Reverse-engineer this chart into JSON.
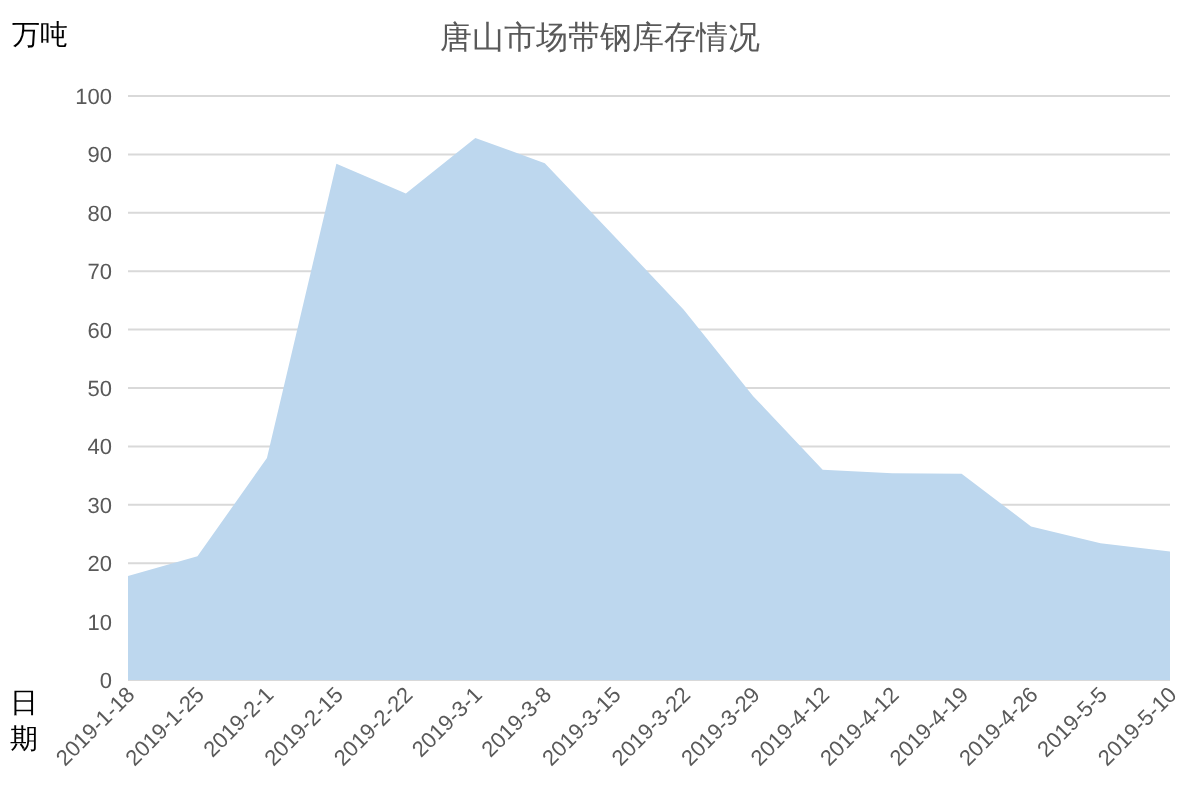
{
  "chart_data": {
    "type": "area",
    "title": "唐山市场带钢库存情况",
    "ylabel": "万吨",
    "xlabel": "日期",
    "categories": [
      "2019-1-18",
      "2019-1-25",
      "2019-2-1",
      "2019-2-15",
      "2019-2-22",
      "2019-3-1",
      "2019-3-8",
      "2019-3-15",
      "2019-3-22",
      "2019-3-29",
      "2019-4-12",
      "2019-4-12",
      "2019-4-19",
      "2019-4-26",
      "2019-5-5",
      "2019-5-10"
    ],
    "series": [
      {
        "color": "#bdd7ee",
        "values": [
          17.8,
          21.2,
          38,
          88.4,
          83.3,
          92.8,
          88.5,
          76,
          63.4,
          48.6,
          36,
          35.4,
          35.3,
          26.3,
          23.4,
          22
        ]
      }
    ],
    "ylim": [
      0,
      100
    ],
    "yticks": [
      0,
      10,
      20,
      30,
      40,
      50,
      60,
      70,
      80,
      90,
      100
    ],
    "grid": "y"
  }
}
